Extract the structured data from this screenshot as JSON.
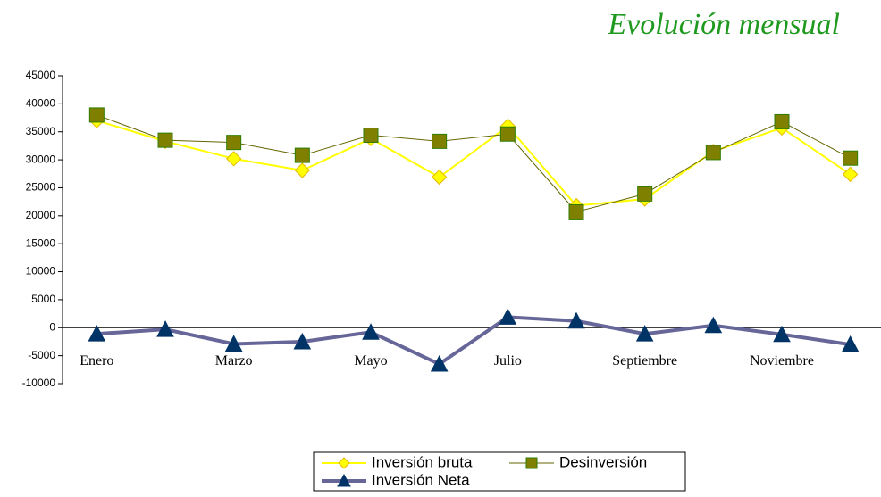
{
  "chart_data": {
    "type": "line",
    "title": "Evolución mensual",
    "categories": [
      "Enero",
      null,
      "Marzo",
      null,
      "Mayo",
      null,
      "Julio",
      null,
      "Septiembre",
      null,
      "Noviembre",
      null
    ],
    "series": [
      {
        "name": "Inversión bruta",
        "color": "#ffff00",
        "values": [
          37000,
          33300,
          30200,
          28100,
          33800,
          26900,
          36000,
          21800,
          23000,
          31500,
          35700,
          27400
        ]
      },
      {
        "name": "Desinversión",
        "color": "#666600",
        "values": [
          38000,
          33500,
          33100,
          30800,
          34400,
          33300,
          34600,
          20700,
          23900,
          31300,
          36800,
          30300
        ]
      },
      {
        "name": "Inversión Neta",
        "color": "#666699",
        "values": [
          -1100,
          -300,
          -2900,
          -2500,
          -800,
          -6500,
          1900,
          1200,
          -1100,
          400,
          -1200,
          -3000
        ]
      }
    ],
    "ylim": [
      -10000,
      45000
    ],
    "yticks": [
      -10000,
      -5000,
      0,
      5000,
      10000,
      15000,
      20000,
      25000,
      30000,
      35000,
      40000,
      45000
    ],
    "grid": false,
    "legend": "bottom"
  }
}
